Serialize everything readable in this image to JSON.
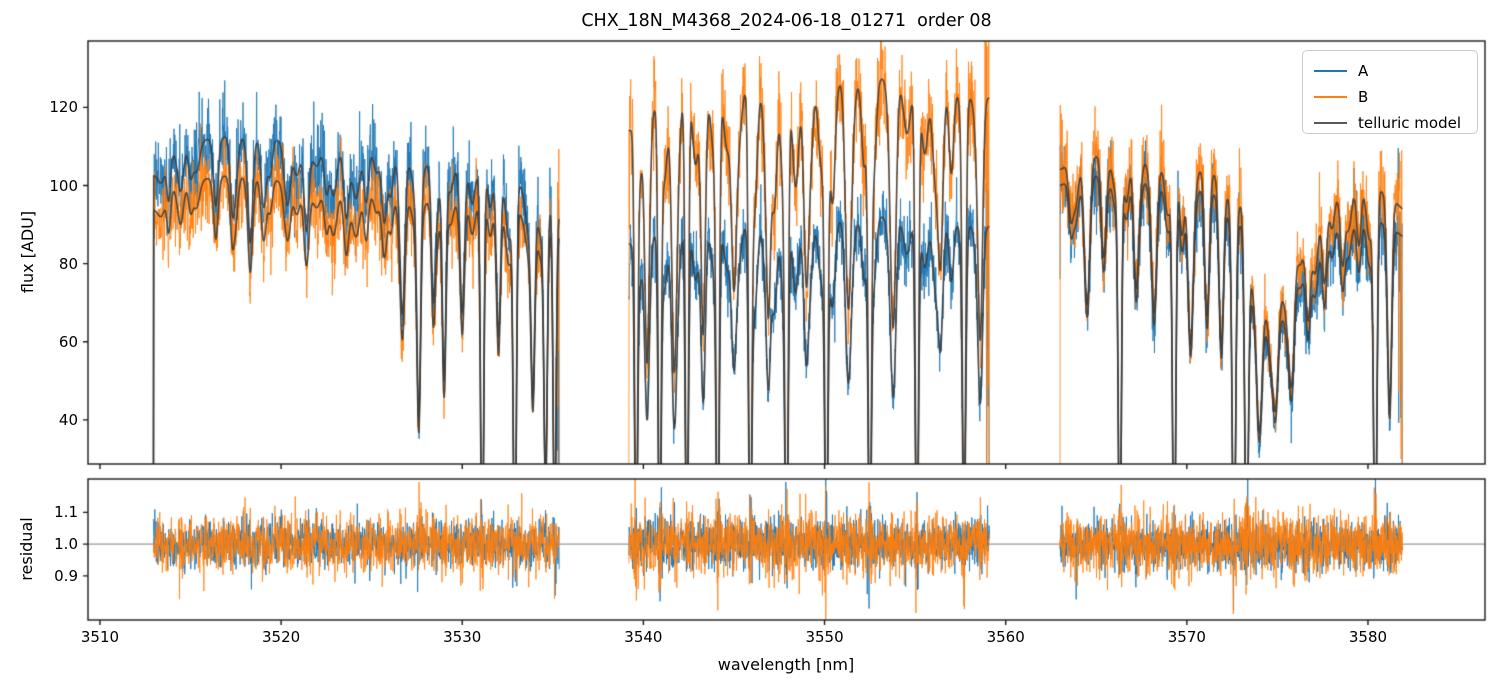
{
  "figure": {
    "title": "CHX_18N_M4368_2024-06-18_01271  order 08"
  },
  "legend": {
    "entries": [
      {
        "label": "A",
        "color": "#1f77b4"
      },
      {
        "label": "B",
        "color": "#ff7f0e"
      },
      {
        "label": "telluric model",
        "color": "#595959"
      }
    ]
  },
  "chart_data": {
    "type": "line",
    "title": "CHX_18N_M4368_2024-06-18_01271  order 08",
    "xlabel": "wavelength [nm]",
    "ylabel_main": "flux [ADU]",
    "ylabel_residual": "residual",
    "xlim": [
      3509.34,
      3586.46
    ],
    "ylim_main": [
      28.7,
      137.0
    ],
    "ylim_residual": [
      0.761,
      1.205
    ],
    "xticks": [
      3510,
      3520,
      3530,
      3540,
      3550,
      3560,
      3570,
      3580
    ],
    "yticks_main": [
      40,
      60,
      80,
      100,
      120
    ],
    "yticks_residual": [
      0.9,
      1.0,
      1.1
    ],
    "residual_reference": 1.0,
    "grid": false,
    "legend_position": "upper right",
    "colors": {
      "A": "#1f77b4",
      "B": "#ff7f0e",
      "telluric": "#3b3b3b",
      "reference_line": "#808080"
    },
    "seed": 7,
    "samples_per_segment": 1400,
    "noise": {
      "rel_sigma_A": 0.052,
      "rel_sigma_B": 0.056,
      "residual_sigma_A": 0.036,
      "residual_sigma_B": 0.044,
      "residual_boost_cap": 2.2
    },
    "segments": [
      {
        "x_range": [
          3512.95,
          3535.35
        ],
        "model_edge_drop": "left",
        "continuum_A": [
          [
            3512.95,
            103
          ],
          [
            3513.6,
            107
          ],
          [
            3514.5,
            110
          ],
          [
            3515.5,
            111.5
          ],
          [
            3517.0,
            112.5
          ],
          [
            3518.5,
            112.5
          ],
          [
            3520.0,
            111.5
          ],
          [
            3521.5,
            110.5
          ],
          [
            3523.0,
            110
          ],
          [
            3524.5,
            109
          ],
          [
            3526.0,
            107.5
          ],
          [
            3527.5,
            106
          ],
          [
            3529.0,
            104.5
          ],
          [
            3530.5,
            103.5
          ],
          [
            3531.8,
            102.5
          ],
          [
            3533.0,
            101
          ],
          [
            3534.2,
            98
          ],
          [
            3535.35,
            92
          ]
        ],
        "continuum_B": [
          [
            3512.95,
            94
          ],
          [
            3513.6,
            98
          ],
          [
            3514.5,
            100.5
          ],
          [
            3515.5,
            101.5
          ],
          [
            3517.0,
            102.5
          ],
          [
            3518.5,
            102.5
          ],
          [
            3520.0,
            101
          ],
          [
            3521.5,
            99.5
          ],
          [
            3523.0,
            98.5
          ],
          [
            3524.5,
            98
          ],
          [
            3526.0,
            97
          ],
          [
            3527.5,
            96
          ],
          [
            3529.0,
            95.5
          ],
          [
            3530.5,
            95
          ],
          [
            3531.8,
            94.5
          ],
          [
            3533.0,
            93.5
          ],
          [
            3534.2,
            91.5
          ],
          [
            3535.35,
            87
          ]
        ],
        "lines": [
          [
            3513.8,
            0.1,
            0.1
          ],
          [
            3515.0,
            0.07,
            0.12
          ],
          [
            3516.4,
            0.09,
            0.12
          ],
          [
            3517.3,
            0.14,
            0.12
          ],
          [
            3518.3,
            0.18,
            0.12
          ],
          [
            3519.4,
            0.08,
            0.12
          ],
          [
            3520.4,
            0.12,
            0.14
          ],
          [
            3521.4,
            0.2,
            0.14
          ],
          [
            3522.5,
            0.1,
            0.12
          ],
          [
            3523.6,
            0.16,
            0.14
          ],
          [
            3524.7,
            0.12,
            0.12
          ],
          [
            3525.7,
            0.16,
            0.14
          ],
          [
            3526.7,
            0.28,
            0.12
          ],
          [
            3527.6,
            0.58,
            0.1
          ],
          [
            3528.4,
            0.28,
            0.1
          ],
          [
            3529.0,
            0.52,
            0.1
          ],
          [
            3530.0,
            0.35,
            0.12
          ],
          [
            3531.1,
            1.0,
            0.085
          ],
          [
            3532.0,
            0.4,
            0.11
          ],
          [
            3532.9,
            1.0,
            0.085
          ],
          [
            3533.9,
            0.5,
            0.1
          ],
          [
            3534.6,
            0.75,
            0.09
          ],
          [
            3535.1,
            0.9,
            0.08
          ]
        ],
        "minor_lines": {
          "spacing": 0.9,
          "depth": [
            0.04,
            0.16
          ],
          "width": [
            0.12,
            0.22
          ]
        }
      },
      {
        "x_range": [
          3539.2,
          3559.1
        ],
        "model_edge_drop": null,
        "continuum_A": [
          [
            3539.2,
            85
          ],
          [
            3540,
            87.5
          ],
          [
            3541.5,
            89
          ],
          [
            3543,
            89.5
          ],
          [
            3545,
            90
          ],
          [
            3547,
            90.5
          ],
          [
            3549,
            91
          ],
          [
            3551,
            91.5
          ],
          [
            3553,
            92
          ],
          [
            3555,
            92.5
          ],
          [
            3556.5,
            92
          ],
          [
            3558,
            91
          ],
          [
            3559.1,
            89.5
          ]
        ],
        "continuum_B": [
          [
            3539.2,
            114
          ],
          [
            3540,
            119
          ],
          [
            3541,
            122
          ],
          [
            3542.5,
            124.5
          ],
          [
            3544,
            124
          ],
          [
            3545.5,
            125
          ],
          [
            3547,
            126
          ],
          [
            3548.5,
            124.5
          ],
          [
            3550,
            126.5
          ],
          [
            3551.5,
            127
          ],
          [
            3553,
            127.5
          ],
          [
            3554.5,
            127
          ],
          [
            3556,
            126
          ],
          [
            3557.5,
            125
          ],
          [
            3559.1,
            122.5
          ]
        ],
        "lines": [
          [
            3539.6,
            1.0,
            0.08
          ],
          [
            3540.2,
            0.5,
            0.12
          ],
          [
            3540.9,
            1.0,
            0.08
          ],
          [
            3541.7,
            0.45,
            0.12
          ],
          [
            3542.4,
            1.0,
            0.085
          ],
          [
            3543.3,
            0.5,
            0.12
          ],
          [
            3544.1,
            1.0,
            0.085
          ],
          [
            3545.0,
            0.4,
            0.14
          ],
          [
            3545.9,
            1.0,
            0.09
          ],
          [
            3546.9,
            0.45,
            0.12
          ],
          [
            3547.9,
            1.0,
            0.09
          ],
          [
            3549.0,
            0.4,
            0.14
          ],
          [
            3550.1,
            1.0,
            0.09
          ],
          [
            3551.3,
            0.35,
            0.14
          ],
          [
            3552.5,
            1.0,
            0.09
          ],
          [
            3553.8,
            0.4,
            0.14
          ],
          [
            3555.1,
            1.0,
            0.09
          ],
          [
            3556.4,
            0.35,
            0.14
          ],
          [
            3557.7,
            0.9,
            0.09
          ],
          [
            3558.6,
            0.45,
            0.12
          ]
        ],
        "minor_lines": {
          "spacing": 0.8,
          "depth": [
            0.08,
            0.25
          ],
          "width": [
            0.12,
            0.2
          ]
        }
      },
      {
        "x_range": [
          3563.0,
          3581.9
        ],
        "model_edge_drop": null,
        "continuum_A": [
          [
            3563,
            100
          ],
          [
            3564,
            102
          ],
          [
            3565.5,
            103
          ],
          [
            3567,
            102
          ],
          [
            3568.5,
            101
          ],
          [
            3570,
            100
          ],
          [
            3571,
            99
          ],
          [
            3572,
            97
          ],
          [
            3572.8,
            94
          ],
          [
            3573.5,
            83
          ],
          [
            3574.1,
            67
          ],
          [
            3574.6,
            62
          ],
          [
            3575.2,
            67
          ],
          [
            3576,
            76
          ],
          [
            3577,
            83
          ],
          [
            3578,
            88
          ],
          [
            3579,
            91
          ],
          [
            3580,
            92
          ],
          [
            3581,
            90
          ],
          [
            3581.9,
            87
          ]
        ],
        "continuum_B": [
          [
            3563,
            104
          ],
          [
            3564,
            107
          ],
          [
            3565.5,
            108
          ],
          [
            3567,
            107
          ],
          [
            3568.5,
            106
          ],
          [
            3570,
            105
          ],
          [
            3571,
            104
          ],
          [
            3572,
            102
          ],
          [
            3572.8,
            99
          ],
          [
            3573.5,
            88
          ],
          [
            3574.1,
            72
          ],
          [
            3574.6,
            66
          ],
          [
            3575.2,
            72
          ],
          [
            3576,
            82
          ],
          [
            3577,
            90
          ],
          [
            3578,
            96
          ],
          [
            3579,
            99
          ],
          [
            3580,
            100
          ],
          [
            3581,
            98
          ],
          [
            3581.9,
            94
          ]
        ],
        "lines": [
          [
            3563.6,
            0.12,
            0.12
          ],
          [
            3564.5,
            0.28,
            0.14
          ],
          [
            3565.4,
            0.2,
            0.12
          ],
          [
            3566.3,
            1.0,
            0.085
          ],
          [
            3567.2,
            0.3,
            0.13
          ],
          [
            3568.2,
            0.25,
            0.12
          ],
          [
            3569.3,
            1.0,
            0.09
          ],
          [
            3570.2,
            0.35,
            0.13
          ],
          [
            3571.1,
            0.25,
            0.12
          ],
          [
            3571.9,
            0.4,
            0.12
          ],
          [
            3572.6,
            1.0,
            0.09
          ],
          [
            3573.3,
            0.95,
            0.1
          ],
          [
            3574.0,
            0.5,
            0.15
          ],
          [
            3574.9,
            0.35,
            0.14
          ],
          [
            3575.8,
            0.3,
            0.13
          ],
          [
            3576.7,
            0.25,
            0.13
          ],
          [
            3577.6,
            0.2,
            0.12
          ],
          [
            3578.6,
            0.18,
            0.12
          ],
          [
            3579.5,
            0.15,
            0.12
          ],
          [
            3580.4,
            1.0,
            0.09
          ],
          [
            3581.2,
            0.5,
            0.11
          ]
        ],
        "minor_lines": {
          "spacing": 0.85,
          "depth": [
            0.05,
            0.2
          ],
          "width": [
            0.12,
            0.2
          ]
        }
      }
    ]
  }
}
